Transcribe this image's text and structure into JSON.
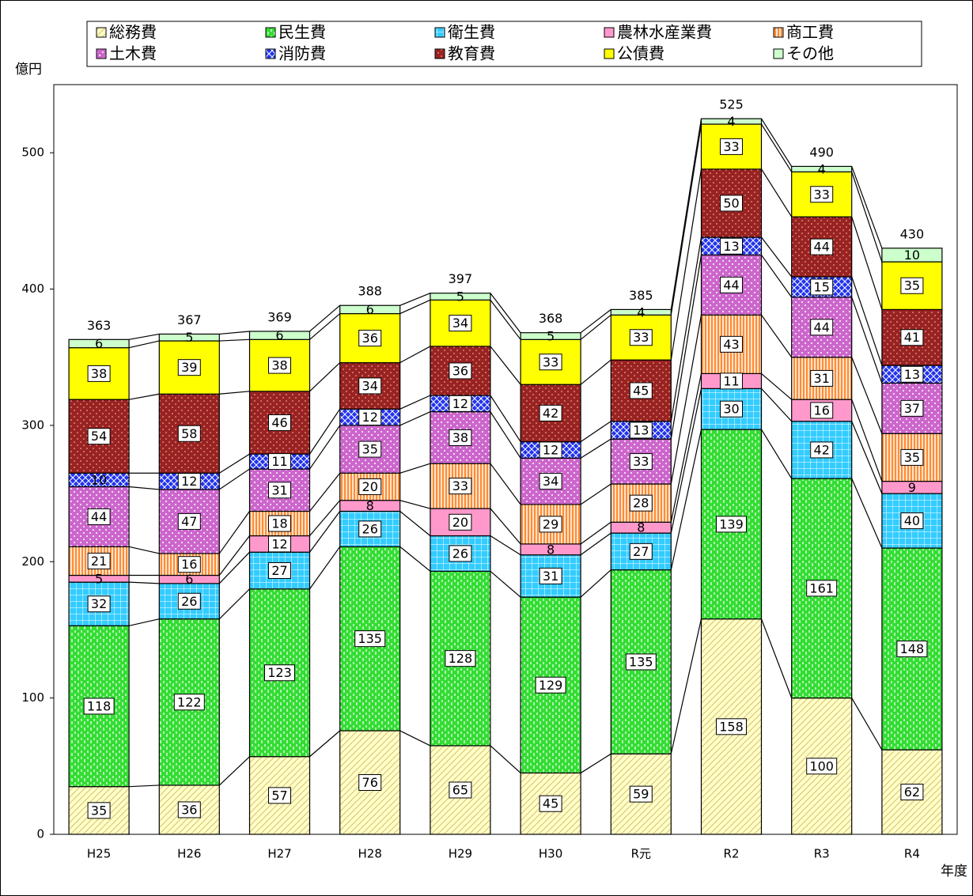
{
  "chart_data": {
    "type": "stacked_bar",
    "y_label": "億円",
    "x_label": "年度",
    "categories": [
      "H25",
      "H26",
      "H27",
      "H28",
      "H29",
      "H30",
      "R元",
      "R2",
      "R3",
      "R4"
    ],
    "series": [
      {
        "name": "総務費",
        "color": "#ffffc8",
        "values": [
          35,
          36,
          57,
          76,
          65,
          45,
          59,
          158,
          100,
          62
        ]
      },
      {
        "name": "民生費",
        "color": "#33dd33",
        "values": [
          118,
          122,
          123,
          135,
          128,
          129,
          135,
          139,
          161,
          148
        ]
      },
      {
        "name": "衛生費",
        "color": "#33ccff",
        "values": [
          32,
          26,
          27,
          26,
          26,
          31,
          27,
          30,
          42,
          40
        ]
      },
      {
        "name": "農林水産業費",
        "color": "#ff99cc",
        "values": [
          5,
          6,
          12,
          8,
          20,
          8,
          8,
          11,
          16,
          9
        ]
      },
      {
        "name": "商工費",
        "color": "#ff8c33",
        "values": [
          21,
          16,
          18,
          20,
          33,
          29,
          28,
          43,
          31,
          35
        ]
      },
      {
        "name": "土木費",
        "color": "#cc66cc",
        "values": [
          44,
          47,
          31,
          35,
          38,
          34,
          33,
          44,
          44,
          37
        ]
      },
      {
        "name": "消防費",
        "color": "#2233ee",
        "values": [
          10,
          12,
          11,
          12,
          12,
          12,
          13,
          13,
          15,
          13
        ]
      },
      {
        "name": "教育費",
        "color": "#992222",
        "values": [
          54,
          58,
          46,
          34,
          36,
          42,
          45,
          50,
          44,
          41
        ]
      },
      {
        "name": "公債費",
        "color": "#ffff00",
        "values": [
          38,
          39,
          38,
          36,
          34,
          33,
          33,
          33,
          33,
          35
        ]
      },
      {
        "name": "その他",
        "color": "#ccffcc",
        "values": [
          6,
          5,
          6,
          6,
          5,
          5,
          4,
          4,
          4,
          10
        ]
      }
    ],
    "totals": [
      363,
      367,
      369,
      388,
      397,
      368,
      385,
      525,
      490,
      430
    ],
    "ylim": [
      0,
      550
    ],
    "yticks": [
      0,
      100,
      200,
      300,
      400,
      500
    ],
    "legend": "top"
  }
}
